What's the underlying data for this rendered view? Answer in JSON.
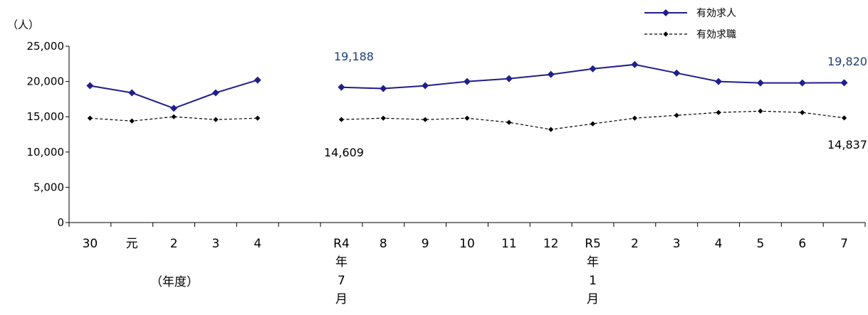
{
  "chart_data": {
    "type": "line",
    "unit_label": "（人）",
    "year_axis_label": "（年度）",
    "ylim": [
      0,
      25000
    ],
    "yticks": [
      {
        "value": 0,
        "label": "0"
      },
      {
        "value": 5000,
        "label": "5,000"
      },
      {
        "value": 10000,
        "label": "10,000"
      },
      {
        "value": 15000,
        "label": "15,000"
      },
      {
        "value": 20000,
        "label": "20,000"
      },
      {
        "value": 25000,
        "label": "25,000"
      }
    ],
    "categories": [
      {
        "label": "30",
        "extra": []
      },
      {
        "label": "元",
        "extra": []
      },
      {
        "label": "2",
        "extra": []
      },
      {
        "label": "3",
        "extra": []
      },
      {
        "label": "4",
        "extra": []
      },
      {
        "label": "",
        "extra": []
      },
      {
        "label": "R4",
        "extra": [
          "年",
          "7",
          "月"
        ]
      },
      {
        "label": "8",
        "extra": []
      },
      {
        "label": "9",
        "extra": []
      },
      {
        "label": "10",
        "extra": []
      },
      {
        "label": "11",
        "extra": []
      },
      {
        "label": "12",
        "extra": []
      },
      {
        "label": "R5",
        "extra": [
          "年",
          "1",
          "月"
        ]
      },
      {
        "label": "2",
        "extra": []
      },
      {
        "label": "3",
        "extra": []
      },
      {
        "label": "4",
        "extra": []
      },
      {
        "label": "5",
        "extra": []
      },
      {
        "label": "6",
        "extra": []
      },
      {
        "label": "7",
        "extra": []
      }
    ],
    "series": [
      {
        "name": "有効求人",
        "color": "#1F1F8C",
        "style": "solid",
        "segments": [
          {
            "start": 0,
            "values": [
              19400,
              18400,
              16200,
              18400,
              20200
            ]
          },
          {
            "start": 6,
            "values": [
              19188,
              19000,
              19400,
              20000,
              20400,
              21000,
              21800,
              22400,
              21200,
              20000,
              19800,
              19800,
              19820
            ]
          }
        ]
      },
      {
        "name": "有効求職",
        "color": "#000000",
        "style": "dashed",
        "segments": [
          {
            "start": 0,
            "values": [
              14800,
              14400,
              15000,
              14600,
              14800
            ]
          },
          {
            "start": 6,
            "values": [
              14609,
              14800,
              14600,
              14800,
              14200,
              13200,
              14000,
              14800,
              15200,
              15600,
              15800,
              15600,
              14837
            ]
          }
        ]
      }
    ],
    "annotations": [
      {
        "text": "19,188",
        "series": 0,
        "category": 6
      },
      {
        "text": "19,820",
        "series": 0,
        "category": 18
      },
      {
        "text": "14,609",
        "series": 1,
        "category": 6
      },
      {
        "text": "14,837",
        "series": 1,
        "category": 18
      }
    ]
  }
}
